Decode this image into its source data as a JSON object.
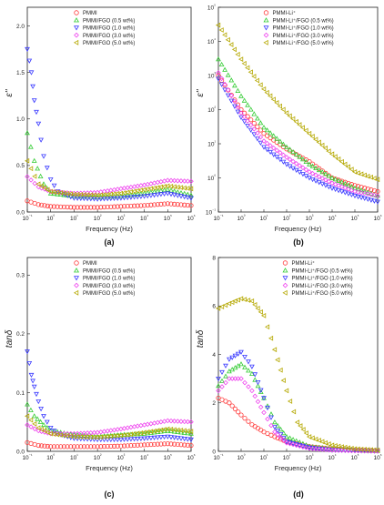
{
  "figure": {
    "panel_labels": [
      "(a)",
      "(b)",
      "(c)",
      "(d)"
    ]
  },
  "chart_data": [
    {
      "type": "scatter",
      "panel_label": "(a)",
      "xlabel": "Frequency (Hz)",
      "ylabel": "ε''",
      "xscale": "log",
      "xlim": [
        0.1,
        1000000
      ],
      "ylim": [
        0,
        2.2
      ],
      "yticks": [
        "0.0",
        "0.5",
        "1.0",
        "1.5",
        "2.0"
      ],
      "xticks": [
        "10⁻¹",
        "10⁰",
        "10¹",
        "10²",
        "10³",
        "10⁴",
        "10⁵",
        "10⁶"
      ],
      "legend_position": "top-center",
      "series": [
        {
          "name": "PMMI",
          "color": "#ff3a3a",
          "marker": "circle",
          "x": [
            0.1,
            0.3,
            1,
            10,
            100,
            1000,
            10000,
            100000,
            1000000
          ],
          "y": [
            0.12,
            0.08,
            0.06,
            0.05,
            0.05,
            0.06,
            0.07,
            0.09,
            0.07
          ]
        },
        {
          "name": "PMMI/FGO (0.5 wt%)",
          "color": "#33cc33",
          "marker": "triangle-up",
          "x": [
            0.1,
            0.2,
            0.5,
            1,
            10,
            100,
            1000,
            10000,
            100000,
            1000000
          ],
          "y": [
            0.85,
            0.55,
            0.3,
            0.2,
            0.17,
            0.16,
            0.17,
            0.2,
            0.24,
            0.18
          ]
        },
        {
          "name": "PMMI/FGO (1.0 wt%)",
          "color": "#3a3aff",
          "marker": "triangle-down",
          "x": [
            0.1,
            0.15,
            0.2,
            0.3,
            0.5,
            1,
            2,
            10,
            100,
            1000,
            10000,
            100000,
            1000000
          ],
          "y": [
            1.75,
            1.5,
            1.2,
            0.95,
            0.6,
            0.35,
            0.22,
            0.15,
            0.14,
            0.15,
            0.17,
            0.2,
            0.15
          ]
        },
        {
          "name": "PMMI/FGO (3.0 wt%)",
          "color": "#ee44ee",
          "marker": "diamond",
          "x": [
            0.1,
            0.3,
            1,
            10,
            100,
            1000,
            10000,
            100000,
            1000000
          ],
          "y": [
            0.38,
            0.27,
            0.22,
            0.2,
            0.21,
            0.25,
            0.29,
            0.34,
            0.33
          ]
        },
        {
          "name": "PMMI/FGO (5.0 wt%)",
          "color": "#b5a800",
          "marker": "triangle-left",
          "x": [
            0.1,
            0.3,
            1,
            10,
            100,
            1000,
            10000,
            100000,
            1000000
          ],
          "y": [
            0.55,
            0.3,
            0.22,
            0.19,
            0.18,
            0.2,
            0.24,
            0.28,
            0.25
          ]
        }
      ]
    },
    {
      "type": "scatter",
      "panel_label": "(b)",
      "xlabel": "Frequency (Hz)",
      "ylabel": "ε''",
      "xscale": "log",
      "yscale": "log",
      "xlim": [
        0.1,
        1000000
      ],
      "ylim": [
        0.1,
        100000
      ],
      "yticks": [
        "10⁻¹",
        "10⁰",
        "10¹",
        "10²",
        "10³",
        "10⁴",
        "10⁵"
      ],
      "xticks": [
        "10⁻¹",
        "10⁰",
        "10¹",
        "10²",
        "10³",
        "10⁴",
        "10⁵",
        "10⁶"
      ],
      "legend_position": "top-center",
      "series": [
        {
          "name": "PMMI-Li⁺",
          "color": "#ff3a3a",
          "marker": "circle",
          "x": [
            0.1,
            1,
            10,
            100,
            1000,
            10000,
            100000,
            1000000
          ],
          "y": [
            1000,
            100,
            20,
            7,
            3,
            1,
            0.6,
            0.4
          ]
        },
        {
          "name": "PMMI-Li⁺/FGO (0.5 wt%)",
          "color": "#33cc33",
          "marker": "triangle-up",
          "x": [
            0.1,
            1,
            10,
            100,
            1000,
            10000,
            100000,
            1000000
          ],
          "y": [
            3000,
            250,
            30,
            8,
            2.5,
            1,
            0.5,
            0.3
          ]
        },
        {
          "name": "PMMI-Li⁺/FGO (1.0 wt%)",
          "color": "#3a3aff",
          "marker": "triangle-down",
          "x": [
            0.1,
            1,
            10,
            100,
            1000,
            10000,
            100000,
            1000000
          ],
          "y": [
            800,
            60,
            8,
            2.5,
            1,
            0.5,
            0.3,
            0.2
          ]
        },
        {
          "name": "PMMI-Li⁺/FGO (3.0 wt%)",
          "color": "#ee44ee",
          "marker": "diamond",
          "x": [
            0.1,
            1,
            10,
            100,
            1000,
            10000,
            100000,
            1000000
          ],
          "y": [
            1200,
            80,
            12,
            4,
            1.5,
            0.7,
            0.4,
            0.3
          ]
        },
        {
          "name": "PMMI-Li⁺/FGO (5.0 wt%)",
          "color": "#b5a800",
          "marker": "triangle-left",
          "x": [
            0.1,
            1,
            10,
            100,
            1000,
            10000,
            100000,
            1000000
          ],
          "y": [
            30000,
            3000,
            400,
            80,
            20,
            5,
            1.5,
            0.9
          ]
        }
      ]
    },
    {
      "type": "scatter",
      "panel_label": "(c)",
      "xlabel": "Frequency (Hz)",
      "ylabel": "tanδ",
      "xscale": "log",
      "xlim": [
        0.1,
        1000000
      ],
      "ylim": [
        0,
        0.33
      ],
      "yticks": [
        "0.0",
        "0.1",
        "0.2",
        "0.3"
      ],
      "xticks": [
        "10⁻¹",
        "10⁰",
        "10¹",
        "10²",
        "10³",
        "10⁴",
        "10⁵",
        "10⁶"
      ],
      "legend_position": "top-center",
      "series": [
        {
          "name": "PMMI",
          "color": "#ff3a3a",
          "marker": "circle",
          "x": [
            0.1,
            0.3,
            1,
            10,
            100,
            1000,
            10000,
            100000,
            1000000
          ],
          "y": [
            0.015,
            0.01,
            0.008,
            0.008,
            0.008,
            0.009,
            0.011,
            0.013,
            0.01
          ]
        },
        {
          "name": "PMMI/FGO (0.5 wt%)",
          "color": "#33cc33",
          "marker": "triangle-up",
          "x": [
            0.1,
            0.2,
            0.5,
            1,
            10,
            100,
            1000,
            10000,
            100000,
            1000000
          ],
          "y": [
            0.08,
            0.06,
            0.045,
            0.035,
            0.028,
            0.025,
            0.028,
            0.03,
            0.035,
            0.03
          ]
        },
        {
          "name": "PMMI/FGO (1.0 wt%)",
          "color": "#3a3aff",
          "marker": "triangle-down",
          "x": [
            0.1,
            0.15,
            0.2,
            0.3,
            0.5,
            1,
            2,
            10,
            100,
            1000,
            10000,
            100000,
            1000000
          ],
          "y": [
            0.17,
            0.13,
            0.11,
            0.085,
            0.06,
            0.04,
            0.03,
            0.022,
            0.02,
            0.02,
            0.022,
            0.025,
            0.02
          ]
        },
        {
          "name": "PMMI/FGO (3.0 wt%)",
          "color": "#ee44ee",
          "marker": "diamond",
          "x": [
            0.1,
            0.3,
            1,
            10,
            100,
            1000,
            10000,
            100000,
            1000000
          ],
          "y": [
            0.045,
            0.035,
            0.03,
            0.03,
            0.032,
            0.038,
            0.045,
            0.052,
            0.05
          ]
        },
        {
          "name": "PMMI/FGO (5.0 wt%)",
          "color": "#b5a800",
          "marker": "triangle-left",
          "x": [
            0.1,
            0.3,
            1,
            10,
            100,
            1000,
            10000,
            100000,
            1000000
          ],
          "y": [
            0.06,
            0.04,
            0.03,
            0.025,
            0.024,
            0.027,
            0.032,
            0.038,
            0.034
          ]
        }
      ]
    },
    {
      "type": "scatter",
      "panel_label": "(d)",
      "xlabel": "Frequency (Hz)",
      "ylabel": "tanδ",
      "xscale": "log",
      "xlim": [
        0.1,
        1000000
      ],
      "ylim": [
        0,
        8
      ],
      "yticks": [
        "0",
        "2",
        "4",
        "6",
        "8"
      ],
      "xticks": [
        "10⁻¹",
        "10⁰",
        "10¹",
        "10²",
        "10³",
        "10⁴",
        "10⁵",
        "10⁶"
      ],
      "legend_position": "top-right",
      "series": [
        {
          "name": "PMMI-Li⁺",
          "color": "#ff3a3a",
          "marker": "circle",
          "x": [
            0.1,
            0.3,
            1,
            3,
            10,
            30,
            100,
            1000,
            10000,
            100000,
            1000000
          ],
          "y": [
            2.2,
            2.0,
            1.5,
            1.1,
            0.8,
            0.6,
            0.4,
            0.2,
            0.1,
            0.05,
            0.02
          ]
        },
        {
          "name": "PMMI-Li⁺/FGO (0.5 wt%)",
          "color": "#33cc33",
          "marker": "triangle-up",
          "x": [
            0.1,
            0.3,
            1,
            3,
            10,
            30,
            100,
            1000,
            10000,
            100000,
            1000000
          ],
          "y": [
            2.7,
            3.3,
            3.6,
            3.2,
            2.2,
            1.2,
            0.6,
            0.2,
            0.1,
            0.05,
            0.02
          ]
        },
        {
          "name": "PMMI-Li⁺/FGO (1.0 wt%)",
          "color": "#3a3aff",
          "marker": "triangle-down",
          "x": [
            0.1,
            0.3,
            1,
            3,
            10,
            30,
            100,
            1000,
            10000,
            100000,
            1000000
          ],
          "y": [
            3.0,
            3.8,
            4.1,
            3.5,
            2.2,
            1.0,
            0.4,
            0.15,
            0.05,
            0.03,
            0.01
          ]
        },
        {
          "name": "PMMI-Li⁺/FGO (3.0 wt%)",
          "color": "#ee44ee",
          "marker": "diamond",
          "x": [
            0.1,
            0.3,
            1,
            3,
            10,
            30,
            100,
            1000,
            10000,
            100000,
            1000000
          ],
          "y": [
            2.5,
            3.0,
            3.0,
            2.5,
            1.6,
            0.8,
            0.35,
            0.12,
            0.05,
            0.02,
            0.01
          ]
        },
        {
          "name": "PMMI-Li⁺/FGO (5.0 wt%)",
          "color": "#b5a800",
          "marker": "triangle-left",
          "x": [
            0.1,
            0.3,
            1,
            3,
            10,
            30,
            100,
            300,
            1000,
            10000,
            100000,
            1000000
          ],
          "y": [
            5.9,
            6.1,
            6.3,
            6.2,
            5.6,
            4.2,
            2.5,
            1.2,
            0.6,
            0.25,
            0.1,
            0.05
          ]
        }
      ]
    }
  ]
}
